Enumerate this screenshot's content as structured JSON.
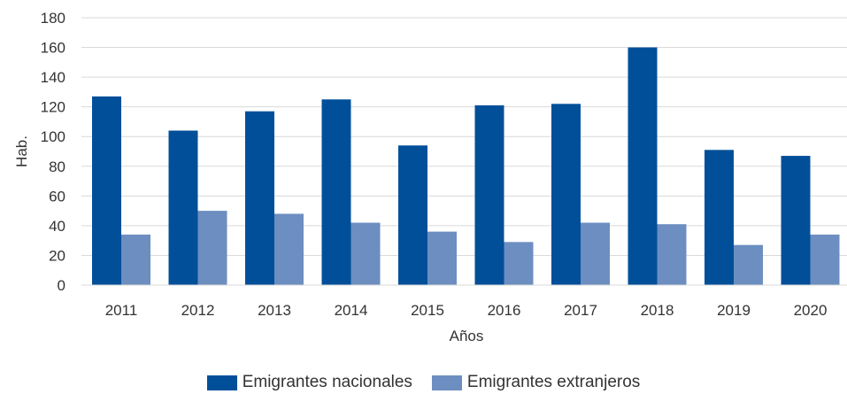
{
  "chart_data": {
    "type": "bar",
    "categories": [
      "2011",
      "2012",
      "2013",
      "2014",
      "2015",
      "2016",
      "2017",
      "2018",
      "2019",
      "2020"
    ],
    "series": [
      {
        "name": "Emigrantes nacionales",
        "color": "#014F99",
        "values": [
          127,
          104,
          117,
          125,
          94,
          121,
          122,
          160,
          91,
          87
        ]
      },
      {
        "name": "Emigrantes extranjeros",
        "color": "#6C8EC0",
        "values": [
          34,
          50,
          48,
          42,
          36,
          29,
          42,
          41,
          27,
          34
        ]
      }
    ],
    "xlabel": "Años",
    "ylabel": "Hab.",
    "ylim": [
      0,
      180
    ],
    "yticks": [
      0,
      20,
      40,
      60,
      80,
      100,
      120,
      140,
      160,
      180
    ],
    "grid": true,
    "legend_position": "bottom"
  }
}
